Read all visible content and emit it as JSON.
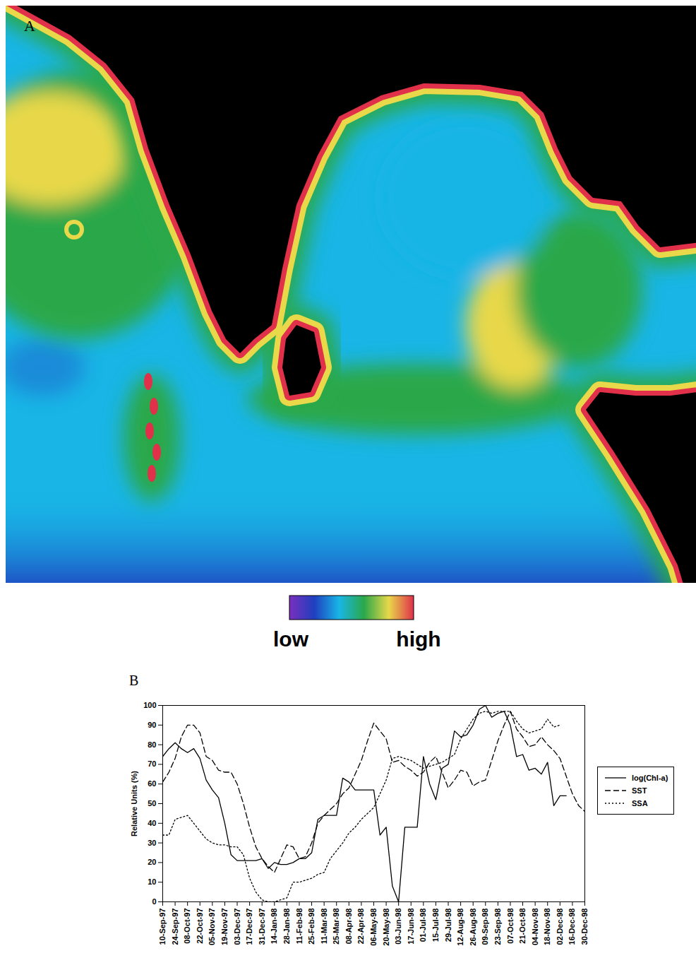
{
  "chart_data": [
    {
      "type": "map",
      "panel": "A",
      "colorbar": {
        "colors": [
          "#7b2fbe",
          "#1f3fbf",
          "#19b5e6",
          "#2aa84a",
          "#e8d84a",
          "#e0304a"
        ],
        "labels": [
          "low",
          "high"
        ]
      }
    },
    {
      "type": "line",
      "panel": "B",
      "ylabel": "Relative Units (%)",
      "categories": [
        "10-Sep-97",
        null,
        "24-Sep-97",
        null,
        "08-Oct-97",
        null,
        "22-Oct-97",
        null,
        "05-Nov-97",
        null,
        "19-Nov-97",
        null,
        "03-Dec-97",
        null,
        "17-Dec-97",
        null,
        "31-Dec-97",
        null,
        "14-Jan-98",
        null,
        "28-Jan-98",
        null,
        "11-Feb-98",
        null,
        "25-Feb-98",
        null,
        "11-Mar-98",
        null,
        "25-Mar-98",
        null,
        "08-Apr-98",
        null,
        "22-Apr-98",
        null,
        "06-May-98",
        null,
        "20-May-98",
        null,
        "03-Jun-98",
        null,
        "17-Jun-98",
        null,
        "01-Jul-98",
        null,
        "15-Jul-98",
        null,
        "29-Jul-98",
        null,
        "12-Aug-98",
        null,
        "26-Aug-98",
        null,
        "09-Sep-98",
        null,
        "23-Sep-98",
        null,
        "07-Oct-98",
        null,
        "21-Oct-98",
        null,
        "04-Nov-98",
        null,
        "18-Nov-98",
        null,
        "02-Dec-98",
        null,
        "16-Dec-98",
        null,
        "30-Dec-98"
      ],
      "series": [
        {
          "name": "log(Chl-a)",
          "color": "#000000",
          "line_style": "solid",
          "values": [
            74,
            78,
            81,
            78,
            76,
            78,
            73,
            62,
            57,
            53,
            40,
            24,
            21,
            21,
            21,
            21,
            22,
            17,
            20,
            19,
            19,
            20,
            22,
            22,
            25,
            42,
            44,
            44,
            44,
            63,
            61,
            57,
            57,
            57,
            57,
            34,
            38,
            8,
            0,
            38,
            38,
            38,
            74,
            60,
            52,
            68,
            70,
            87,
            84,
            85,
            90,
            98,
            100,
            94,
            96,
            97,
            90,
            74,
            75,
            67,
            68,
            65,
            71,
            49,
            54,
            54,
            null,
            null,
            null
          ]
        },
        {
          "name": "SST",
          "color": "#000000",
          "line_style": "dashed",
          "values": [
            61,
            66,
            73,
            84,
            90,
            90,
            86,
            74,
            72,
            67,
            66,
            66,
            60,
            50,
            38,
            28,
            22,
            18,
            15,
            22,
            29,
            28,
            22,
            23,
            30,
            40,
            44,
            47,
            50,
            55,
            58,
            65,
            72,
            82,
            91,
            87,
            83,
            71,
            72,
            69,
            67,
            64,
            66,
            71,
            74,
            66,
            58,
            62,
            67,
            66,
            59,
            61,
            62,
            72,
            82,
            90,
            97,
            88,
            84,
            79,
            80,
            84,
            80,
            77,
            73,
            64,
            55,
            49,
            46
          ]
        },
        {
          "name": "SSA",
          "color": "#000000",
          "line_style": "dotted",
          "values": [
            34,
            34,
            42,
            43,
            44,
            40,
            36,
            32,
            30,
            29,
            29,
            28,
            28,
            24,
            12,
            5,
            1,
            0,
            0,
            1,
            2,
            10,
            10,
            11,
            12,
            14,
            15,
            22,
            26,
            30,
            35,
            38,
            42,
            45,
            48,
            55,
            62,
            73,
            74,
            73,
            72,
            70,
            68,
            69,
            70,
            71,
            73,
            75,
            83,
            88,
            93,
            96,
            97,
            96,
            97,
            97,
            97,
            92,
            88,
            86,
            87,
            88,
            93,
            89,
            90,
            null,
            null,
            null,
            null
          ]
        }
      ],
      "ylim": [
        0,
        100
      ],
      "yticks": [
        0,
        10,
        20,
        30,
        40,
        50,
        60,
        70,
        80,
        90,
        100
      ],
      "legend": "right"
    }
  ]
}
